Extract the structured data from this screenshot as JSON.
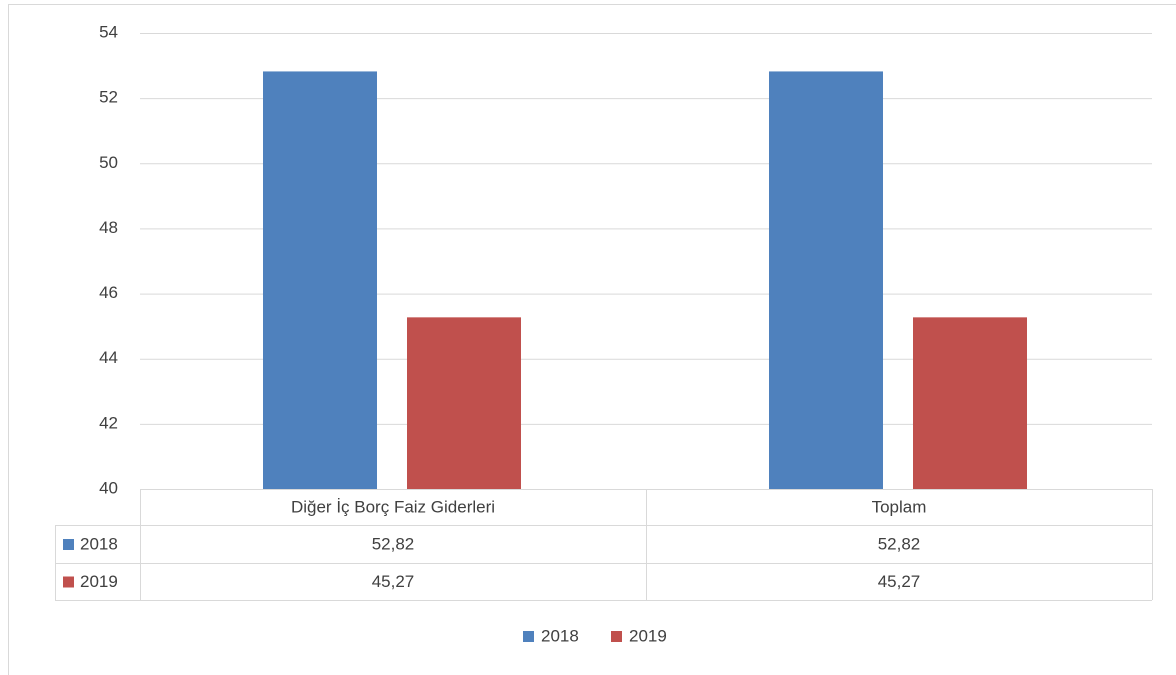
{
  "chart_data": {
    "type": "bar",
    "categories": [
      "Diğer İç Borç Faiz Giderleri",
      "Toplam"
    ],
    "series": [
      {
        "name": "2018",
        "color": "#4f81bd",
        "values": [
          52.82,
          52.82
        ],
        "value_labels": [
          "52,82",
          "52,82"
        ]
      },
      {
        "name": "2019",
        "color": "#c0504d",
        "values": [
          45.27,
          45.27
        ],
        "value_labels": [
          "45,27",
          "45,27"
        ]
      }
    ],
    "ylim": [
      40,
      54
    ],
    "yticks": [
      40,
      42,
      44,
      46,
      48,
      50,
      52,
      54
    ],
    "grid": true,
    "data_table": true,
    "legend": "bottom"
  }
}
